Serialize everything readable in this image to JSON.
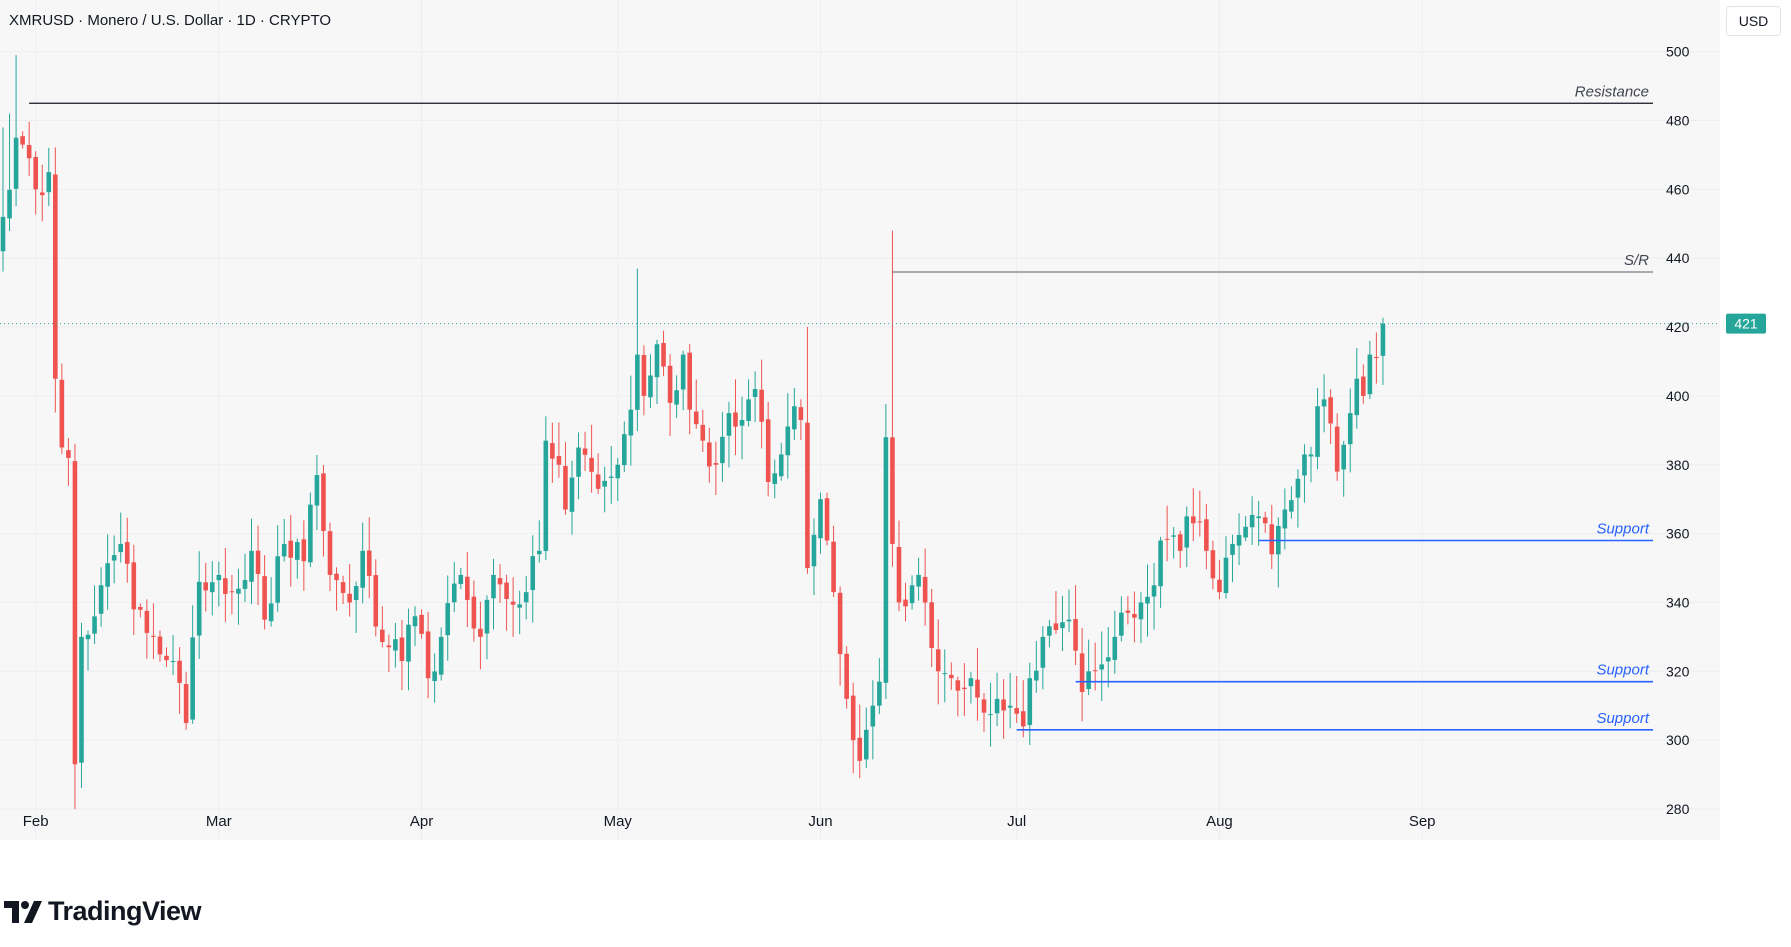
{
  "header": {
    "title": "XMRUSD · Monero / U.S. Dollar · 1D · CRYPTO"
  },
  "toolbar": {
    "currency_label": "USD"
  },
  "footer": {
    "brand": "TradingView"
  },
  "colors": {
    "up": "#26a69a",
    "down": "#ef5350",
    "support": "#2962ff",
    "resistance": "#131722",
    "sr": "#787b86",
    "price_label_bg": "#26a69a",
    "grid": "#eceef2"
  },
  "chart_data": {
    "type": "candlestick",
    "ylim": [
      271,
      515
    ],
    "y_ticks": [
      280,
      300,
      320,
      340,
      360,
      380,
      400,
      420,
      440,
      460,
      480,
      500
    ],
    "x_ticks": [
      "Feb",
      "Mar",
      "Apr",
      "May",
      "Jun",
      "Jul",
      "Aug",
      "Sep"
    ],
    "last_price": "421",
    "series": [
      {
        "name": "XMRUSD",
        "keypoints": [
          [
            0,
            452
          ],
          [
            2,
            475
          ],
          [
            5,
            460
          ],
          [
            7,
            465
          ],
          [
            8,
            405
          ],
          [
            9,
            385
          ],
          [
            10,
            382
          ],
          [
            11,
            293
          ],
          [
            12,
            330
          ],
          [
            15,
            345
          ],
          [
            18,
            357
          ],
          [
            20,
            338
          ],
          [
            23,
            330
          ],
          [
            26,
            323
          ],
          [
            28,
            305
          ],
          [
            30,
            346
          ],
          [
            33,
            348
          ],
          [
            36,
            344
          ],
          [
            38,
            355
          ],
          [
            40,
            335
          ],
          [
            43,
            357
          ],
          [
            46,
            352
          ],
          [
            48,
            377
          ],
          [
            50,
            348
          ],
          [
            53,
            340
          ],
          [
            55,
            355
          ],
          [
            57,
            333
          ],
          [
            59,
            327
          ],
          [
            61,
            323
          ],
          [
            63,
            336
          ],
          [
            65,
            318
          ],
          [
            67,
            330
          ],
          [
            70,
            348
          ],
          [
            73,
            330
          ],
          [
            75,
            348
          ],
          [
            77,
            341
          ],
          [
            80,
            343
          ],
          [
            82,
            355
          ],
          [
            83,
            387
          ],
          [
            85,
            380
          ],
          [
            86,
            367
          ],
          [
            88,
            385
          ],
          [
            91,
            373
          ],
          [
            94,
            380
          ],
          [
            96,
            396
          ],
          [
            97,
            412
          ],
          [
            98,
            400
          ],
          [
            100,
            415
          ],
          [
            102,
            398
          ],
          [
            104,
            412
          ],
          [
            105,
            396
          ],
          [
            107,
            387
          ],
          [
            109,
            380
          ],
          [
            111,
            395
          ],
          [
            113,
            393
          ],
          [
            115,
            402
          ],
          [
            117,
            375
          ],
          [
            119,
            383
          ],
          [
            121,
            397
          ],
          [
            122,
            393
          ],
          [
            123,
            350
          ],
          [
            125,
            370
          ],
          [
            126,
            358
          ],
          [
            127,
            343
          ],
          [
            128,
            325
          ],
          [
            129,
            312
          ],
          [
            130,
            300
          ],
          [
            131,
            294
          ],
          [
            132,
            303
          ],
          [
            133,
            310
          ],
          [
            134,
            317
          ],
          [
            135,
            388
          ],
          [
            136,
            357
          ],
          [
            137,
            340
          ],
          [
            139,
            345
          ],
          [
            140,
            348
          ],
          [
            141,
            340
          ],
          [
            143,
            320
          ],
          [
            145,
            318
          ],
          [
            148,
            318
          ],
          [
            150,
            308
          ],
          [
            152,
            312
          ],
          [
            154,
            310
          ],
          [
            156,
            304
          ],
          [
            157,
            318
          ],
          [
            159,
            330
          ],
          [
            161,
            332
          ],
          [
            163,
            335
          ],
          [
            164,
            326
          ],
          [
            165,
            314
          ],
          [
            166,
            320
          ],
          [
            168,
            322
          ],
          [
            170,
            330
          ],
          [
            172,
            337
          ],
          [
            174,
            340
          ],
          [
            176,
            345
          ],
          [
            177,
            358
          ],
          [
            180,
            355
          ],
          [
            181,
            365
          ],
          [
            182,
            363
          ],
          [
            184,
            355
          ],
          [
            185,
            347
          ],
          [
            186,
            343
          ],
          [
            187,
            353
          ],
          [
            188,
            357
          ],
          [
            190,
            362
          ],
          [
            192,
            365
          ],
          [
            193,
            363
          ],
          [
            194,
            354
          ],
          [
            196,
            367
          ],
          [
            199,
            383
          ],
          [
            200,
            383
          ],
          [
            201,
            397
          ],
          [
            202,
            399
          ],
          [
            203,
            392
          ],
          [
            204,
            378
          ],
          [
            206,
            395
          ],
          [
            207,
            405
          ],
          [
            208,
            400
          ],
          [
            209,
            412
          ],
          [
            210,
            411
          ],
          [
            211,
            421
          ]
        ]
      }
    ],
    "annotations": [
      {
        "label": "Resistance",
        "price": 485,
        "from_day": 4
      },
      {
        "label": "S/R",
        "price": 436,
        "from_day": 136
      },
      {
        "label": "Support",
        "price": 358,
        "from_day": 192
      },
      {
        "label": "Support",
        "price": 317,
        "from_day": 164
      },
      {
        "label": "Support",
        "price": 303,
        "from_day": 155
      }
    ]
  }
}
